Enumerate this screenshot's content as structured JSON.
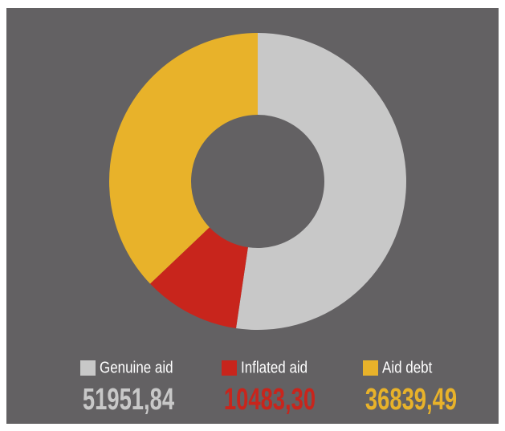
{
  "chart_data": {
    "type": "pie",
    "categories": [
      "Genuine aid",
      "Inflated aid",
      "Aid debt"
    ],
    "values": [
      51951.84,
      10483.3,
      36839.49
    ],
    "value_labels": [
      "51951,84",
      "10483,30",
      "36839,49"
    ],
    "colors": [
      "#c8c8c8",
      "#c8251c",
      "#e8b22a"
    ]
  }
}
